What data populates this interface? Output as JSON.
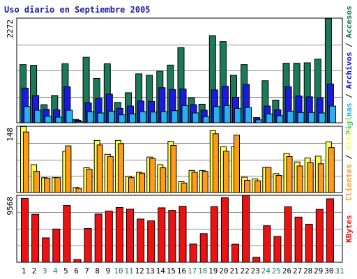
{
  "chart_data": {
    "type": "bar",
    "title": "Uso diario en Septiembre 2005",
    "days": [
      "1",
      "2",
      "3",
      "4",
      "5",
      "6",
      "7",
      "8",
      "9",
      "10",
      "11",
      "12",
      "13",
      "14",
      "15",
      "16",
      "17",
      "18",
      "19",
      "20",
      "21",
      "22",
      "23",
      "24",
      "25",
      "26",
      "27",
      "28",
      "29",
      "30",
      "31"
    ],
    "weekend_days": [
      "3",
      "4",
      "10",
      "11",
      "17",
      "18",
      "24",
      "25",
      "31"
    ],
    "colors": {
      "accesos": "#1a7a5a",
      "archivos": "#1a1ae0",
      "paginas": "#2ab0f0",
      "visitas": "#ffff40",
      "clientes": "#ff9a1a",
      "kbytes": "#ee1111",
      "weekday_label": "#000000",
      "weekend_label": "#1a7a5a",
      "frame": "#000000"
    },
    "panels": [
      {
        "ymax_label": "2272",
        "ymax": 2272,
        "right_label": [
          {
            "text": "Páginas",
            "color": "#2ab0f0"
          },
          {
            "text": " / ",
            "color": "#000000"
          },
          {
            "text": "Archivos",
            "color": "#1a1ae0"
          },
          {
            "text": " / ",
            "color": "#000000"
          },
          {
            "text": "Accesos",
            "color": "#1a7a5a"
          }
        ],
        "series": [
          {
            "name": "Accesos",
            "color_key": "accesos",
            "values": [
              1270,
              1255,
              400,
              600,
              1290,
              80,
              1430,
              970,
              1290,
              450,
              660,
              1070,
              1040,
              1130,
              1260,
              1640,
              550,
              410,
              1900,
              1770,
              1040,
              1270,
              0,
              920,
              500,
              1300,
              1300,
              1310,
              1390,
              2270,
              0
            ]
          },
          {
            "name": "Archivos",
            "color_key": "archivos",
            "values": [
              760,
              600,
              300,
              290,
              790,
              60,
              440,
              540,
              630,
              320,
              370,
              480,
              470,
              770,
              730,
              740,
              400,
              280,
              720,
              800,
              560,
              840,
              120,
              370,
              290,
              790,
              590,
              570,
              550,
              850,
              0
            ]
          },
          {
            "name": "Páginas",
            "color_key": "paginas",
            "values": [
              360,
              280,
              150,
              130,
              280,
              30,
              250,
              220,
              260,
              180,
              200,
              250,
              240,
              250,
              270,
              380,
              220,
              140,
              360,
              380,
              320,
              340,
              70,
              200,
              160,
              260,
              230,
              230,
              220,
              370,
              0
            ]
          }
        ]
      },
      {
        "ymax_label": "148",
        "ymax": 148,
        "right_label": [
          {
            "text": "Clientes",
            "color": "#ff9a1a"
          },
          {
            "text": " / ",
            "color": "#000000"
          },
          {
            "text": "Visitas",
            "color": "#ffff40"
          }
        ],
        "series": [
          {
            "name": "Visitas",
            "color_key": "visitas",
            "values": [
              148,
              63,
              34,
              34,
              93,
              12,
              56,
              117,
              86,
              117,
              37,
              46,
              80,
              63,
              115,
              25,
              50,
              50,
              139,
              103,
              103,
              35,
              31,
              57,
              43,
              88,
              69,
              78,
              82,
              114,
              0
            ]
          },
          {
            "name": "Clientes",
            "color_key": "clientes",
            "values": [
              136,
              48,
              33,
              34,
              105,
              10,
              53,
              107,
              81,
              110,
              34,
              44,
              77,
              56,
              106,
              22,
              46,
              48,
              132,
              93,
              129,
              28,
              27,
              57,
              39,
              81,
              60,
              68,
              65,
              101,
              0
            ]
          }
        ]
      },
      {
        "ymax_label": "9568",
        "ymax": 9568,
        "right_label": [
          {
            "text": "KBytes",
            "color": "#ee1111"
          }
        ],
        "series": [
          {
            "name": "KBytes",
            "color_key": "kbytes",
            "values": [
              9170,
              6910,
              3540,
              4800,
              8170,
              450,
              4880,
              6940,
              7370,
              7870,
              7640,
              6230,
              5970,
              7830,
              7460,
              8050,
              2660,
              4150,
              8000,
              9290,
              2630,
              9600,
              760,
              5270,
              3740,
              7970,
              6500,
              5490,
              7610,
              9120,
              0
            ]
          }
        ]
      }
    ]
  }
}
